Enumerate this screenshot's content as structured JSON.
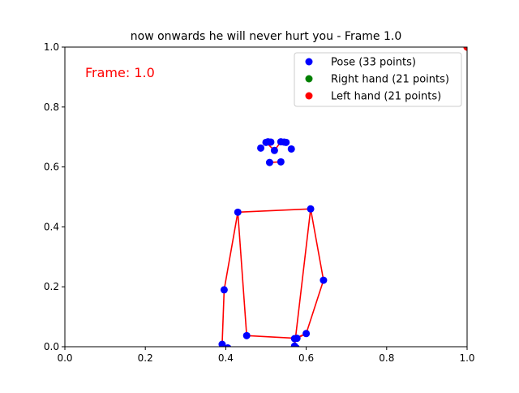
{
  "chart_data": {
    "type": "scatter",
    "title": "now onwards he will never hurt you - Frame 1.0",
    "xlabel": "",
    "ylabel": "",
    "xlim": [
      0.0,
      1.0
    ],
    "ylim": [
      0.0,
      1.0
    ],
    "xticks": [
      "0.0",
      "0.2",
      "0.4",
      "0.6",
      "0.8",
      "1.0"
    ],
    "yticks": [
      "0.0",
      "0.2",
      "0.4",
      "0.6",
      "0.8",
      "1.0"
    ],
    "grid": false,
    "legend_position": "top-right",
    "annotation": {
      "text": "Frame: 1.0",
      "color": "#ff0000",
      "position": "top-left"
    },
    "series": [
      {
        "name": "Pose (33 points)",
        "color": "#0000ff",
        "points": [
          [
            0.521,
            0.655
          ],
          [
            0.5,
            0.682
          ],
          [
            0.505,
            0.684
          ],
          [
            0.512,
            0.683
          ],
          [
            0.537,
            0.684
          ],
          [
            0.545,
            0.683
          ],
          [
            0.55,
            0.682
          ],
          [
            0.487,
            0.663
          ],
          [
            0.563,
            0.66
          ],
          [
            0.509,
            0.615
          ],
          [
            0.537,
            0.617
          ],
          [
            0.43,
            0.449
          ],
          [
            0.611,
            0.46
          ],
          [
            0.396,
            0.19
          ],
          [
            0.643,
            0.222
          ],
          [
            0.391,
            0.008
          ],
          [
            0.6,
            0.044
          ],
          [
            0.405,
            -0.004
          ],
          [
            0.577,
            0.028
          ],
          [
            0.452,
            0.037
          ],
          [
            0.571,
            0.027
          ],
          [
            0.571,
            0.002
          ],
          [
            0.575,
            -0.004
          ]
        ],
        "edges": [
          [
            0,
            1
          ],
          [
            0,
            4
          ],
          [
            1,
            2
          ],
          [
            2,
            3
          ],
          [
            4,
            5
          ],
          [
            5,
            6
          ],
          [
            9,
            10
          ],
          [
            11,
            12
          ],
          [
            11,
            13
          ],
          [
            13,
            15
          ],
          [
            12,
            14
          ],
          [
            14,
            16
          ],
          [
            16,
            18
          ],
          [
            16,
            20
          ],
          [
            18,
            20
          ],
          [
            11,
            19
          ],
          [
            19,
            18
          ],
          [
            12,
            21
          ],
          [
            15,
            17
          ],
          [
            21,
            22
          ]
        ]
      },
      {
        "name": "Right hand (21 points)",
        "color": "#008000",
        "points": []
      },
      {
        "name": "Left hand (21 points)",
        "color": "#ff0000",
        "points": [
          [
            1.0,
            1.0
          ],
          [
            1.0,
            1.0
          ],
          [
            1.0,
            1.0
          ]
        ]
      }
    ],
    "connection_color": "#ff0000"
  }
}
